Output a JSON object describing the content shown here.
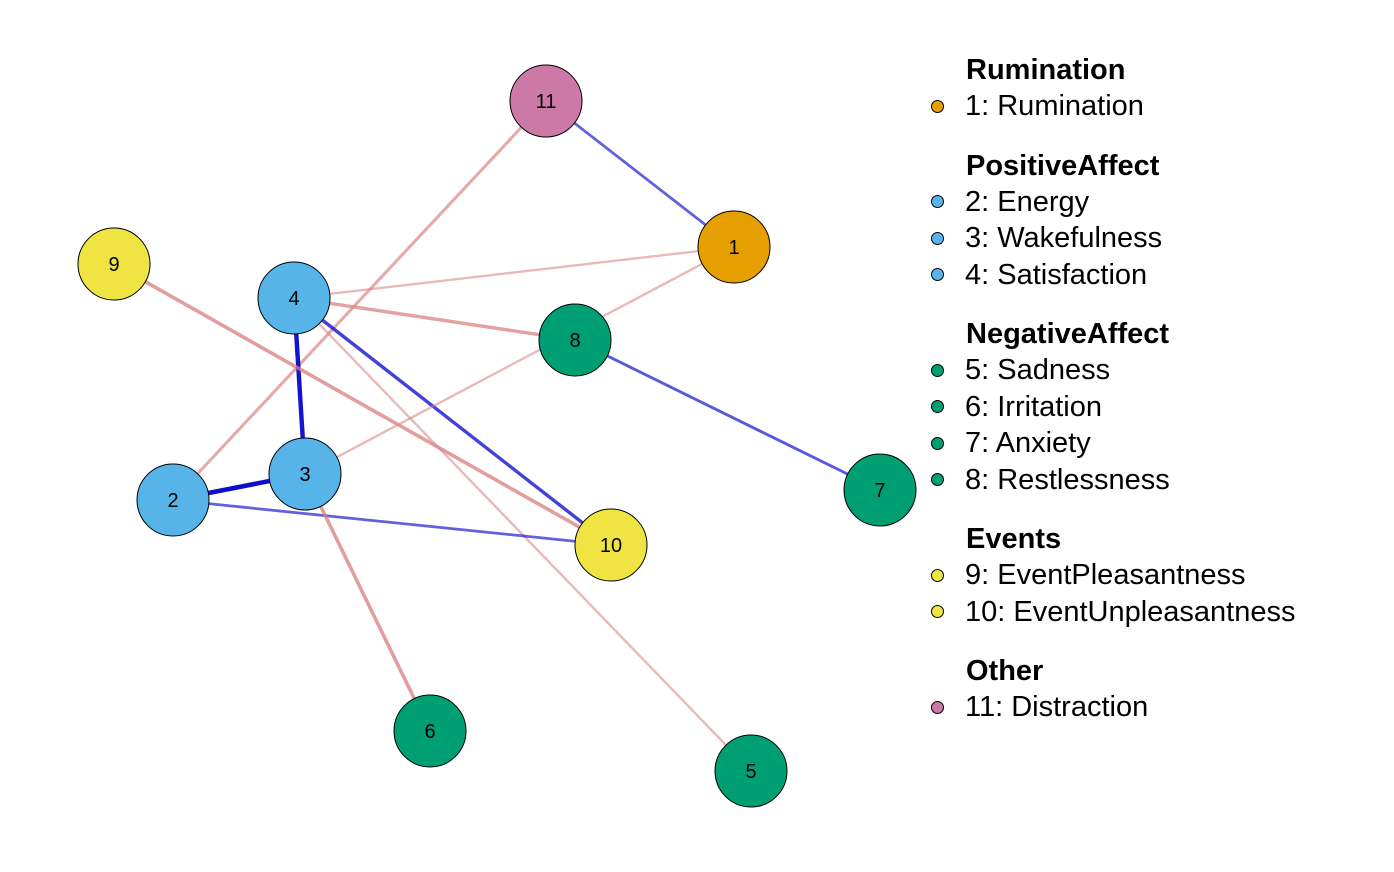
{
  "colors": {
    "rumination": "#E69F00",
    "positive_affect": "#56B4E9",
    "negative_affect": "#009E73",
    "events": "#F0E442",
    "other": "#CC79A7",
    "positive_edge": "#0000CC",
    "negative_edge": "#D98080"
  },
  "nodes": [
    {
      "id": "1",
      "label": "1",
      "group": "Rumination"
    },
    {
      "id": "2",
      "label": "2",
      "group": "PositiveAffect"
    },
    {
      "id": "3",
      "label": "3",
      "group": "PositiveAffect"
    },
    {
      "id": "4",
      "label": "4",
      "group": "PositiveAffect"
    },
    {
      "id": "5",
      "label": "5",
      "group": "NegativeAffect"
    },
    {
      "id": "6",
      "label": "6",
      "group": "NegativeAffect"
    },
    {
      "id": "7",
      "label": "7",
      "group": "NegativeAffect"
    },
    {
      "id": "8",
      "label": "8",
      "group": "NegativeAffect"
    },
    {
      "id": "9",
      "label": "9",
      "group": "Events"
    },
    {
      "id": "10",
      "label": "10",
      "group": "Events"
    },
    {
      "id": "11",
      "label": "11",
      "group": "Other"
    }
  ],
  "edges": [
    {
      "from": "11",
      "to": "1",
      "sign": "positive",
      "strength": 0.45
    },
    {
      "from": "11",
      "to": "2",
      "sign": "negative",
      "strength": 0.55
    },
    {
      "from": "4",
      "to": "1",
      "sign": "negative",
      "strength": 0.35
    },
    {
      "from": "4",
      "to": "8",
      "sign": "negative",
      "strength": 0.65
    },
    {
      "from": "4",
      "to": "3",
      "sign": "positive",
      "strength": 0.95
    },
    {
      "from": "4",
      "to": "10",
      "sign": "positive",
      "strength": 0.65
    },
    {
      "from": "4",
      "to": "5",
      "sign": "negative",
      "strength": 0.35
    },
    {
      "from": "3",
      "to": "1",
      "sign": "negative",
      "strength": 0.35
    },
    {
      "from": "9",
      "to": "10",
      "sign": "negative",
      "strength": 0.7
    },
    {
      "from": "8",
      "to": "7",
      "sign": "positive",
      "strength": 0.5
    },
    {
      "from": "2",
      "to": "3",
      "sign": "positive",
      "strength": 1.0
    },
    {
      "from": "2",
      "to": "10",
      "sign": "positive",
      "strength": 0.45
    },
    {
      "from": "3",
      "to": "6",
      "sign": "negative",
      "strength": 0.7
    }
  ],
  "legend": {
    "groups": [
      {
        "title": "Rumination",
        "color_key": "rumination",
        "items": [
          "1: Rumination"
        ]
      },
      {
        "title": "PositiveAffect",
        "color_key": "positive_affect",
        "items": [
          "2: Energy",
          "3: Wakefulness",
          "4: Satisfaction"
        ]
      },
      {
        "title": "NegativeAffect",
        "color_key": "negative_affect",
        "items": [
          "5: Sadness",
          "6: Irritation",
          "7: Anxiety",
          "8: Restlessness"
        ]
      },
      {
        "title": "Events",
        "color_key": "events",
        "items": [
          "9: EventPleasantness",
          "10: EventUnpleasantness"
        ]
      },
      {
        "title": "Other",
        "color_key": "other",
        "items": [
          "11: Distraction"
        ]
      }
    ]
  }
}
